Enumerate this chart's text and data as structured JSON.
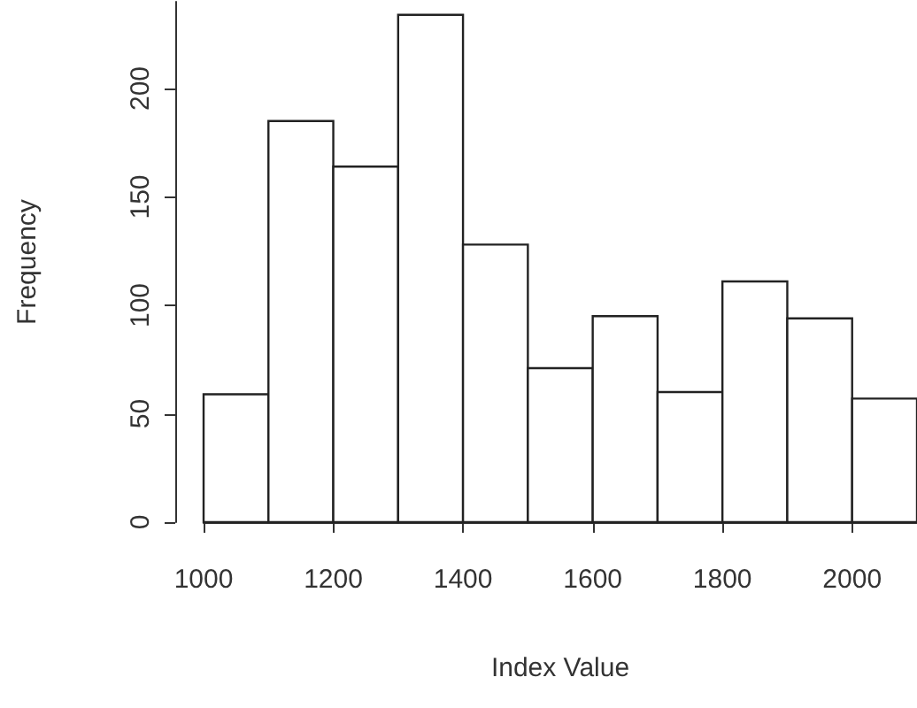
{
  "chart_data": {
    "type": "histogram",
    "xlabel": "Index Value",
    "ylabel": "Frequency",
    "bins": [
      1000,
      1100,
      1200,
      1300,
      1400,
      1500,
      1600,
      1700,
      1800,
      1900,
      2000,
      2100
    ],
    "values": [
      59,
      185,
      164,
      234,
      128,
      71,
      95,
      60,
      111,
      94,
      57
    ],
    "color": "#ffffff",
    "xlim": [
      1000,
      2100
    ],
    "xticks": [
      1000,
      1200,
      1400,
      1600,
      1800,
      2000
    ],
    "ylim": [
      0,
      240
    ],
    "yticks": [
      0,
      50,
      100,
      150,
      200
    ],
    "grid": false
  }
}
